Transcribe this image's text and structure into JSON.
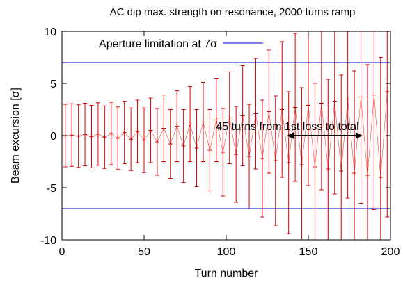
{
  "chart_data": {
    "type": "scatter",
    "title": "AC dip max. strength on resonance, 2000 turns ramp",
    "xlabel": "Turn number",
    "ylabel": "Beam excursion [σ]",
    "xlim": [
      0,
      200
    ],
    "ylim": [
      -10,
      10
    ],
    "x_ticks": [
      0,
      50,
      100,
      150,
      200
    ],
    "y_ticks": [
      -10,
      -5,
      0,
      5,
      10
    ],
    "x_tick_labels": [
      "0",
      "50",
      "100",
      "150",
      "200"
    ],
    "y_tick_labels": [
      "-10",
      "-5",
      "0",
      "5",
      "10"
    ],
    "grid": false,
    "legend_position": "top-left",
    "reference_lines": [
      {
        "name": "Aperture limitation at 7σ",
        "y": 7,
        "color": "#0000cc"
      },
      {
        "name": "",
        "y": -7,
        "color": "#0000cc"
      }
    ],
    "annotation": {
      "text": "45 turns from 1st loss to total",
      "arrow_from": 137,
      "arrow_to": 183,
      "y": 0
    },
    "series": [
      {
        "color": "#dd0000",
        "error_band_start": 3.0,
        "error_band_growth": 1e-07,
        "points": [
          {
            "x": 2,
            "y": 0.0
          },
          {
            "x": 6,
            "y": 0.05
          },
          {
            "x": 10,
            "y": -0.05
          },
          {
            "x": 14,
            "y": 0.1
          },
          {
            "x": 18,
            "y": -0.1
          },
          {
            "x": 22,
            "y": 0.15
          },
          {
            "x": 26,
            "y": -0.15
          },
          {
            "x": 30,
            "y": 0.2
          },
          {
            "x": 34,
            "y": -0.25
          },
          {
            "x": 38,
            "y": 0.3
          },
          {
            "x": 42,
            "y": -0.35
          },
          {
            "x": 46,
            "y": 0.4
          },
          {
            "x": 50,
            "y": -0.45
          },
          {
            "x": 54,
            "y": 0.5
          },
          {
            "x": 58,
            "y": -0.6
          },
          {
            "x": 62,
            "y": 0.7
          },
          {
            "x": 66,
            "y": -0.8
          },
          {
            "x": 70,
            "y": 0.9
          },
          {
            "x": 74,
            "y": -1.0
          },
          {
            "x": 78,
            "y": 1.1
          },
          {
            "x": 82,
            "y": -1.2
          },
          {
            "x": 86,
            "y": 1.3
          },
          {
            "x": 90,
            "y": -1.4
          },
          {
            "x": 94,
            "y": 1.5
          },
          {
            "x": 98,
            "y": -1.6
          },
          {
            "x": 102,
            "y": 1.7
          },
          {
            "x": 106,
            "y": -1.8
          },
          {
            "x": 110,
            "y": 1.9
          },
          {
            "x": 114,
            "y": -2.0
          },
          {
            "x": 118,
            "y": 2.1
          },
          {
            "x": 122,
            "y": -2.2
          },
          {
            "x": 126,
            "y": 2.3
          },
          {
            "x": 130,
            "y": -2.4
          },
          {
            "x": 134,
            "y": 2.5
          },
          {
            "x": 138,
            "y": -2.6
          },
          {
            "x": 142,
            "y": 2.7
          },
          {
            "x": 146,
            "y": -2.8
          },
          {
            "x": 150,
            "y": 2.9
          },
          {
            "x": 154,
            "y": -3.0
          },
          {
            "x": 158,
            "y": 3.1
          },
          {
            "x": 162,
            "y": -3.2
          },
          {
            "x": 166,
            "y": 3.3
          },
          {
            "x": 170,
            "y": -3.4
          },
          {
            "x": 174,
            "y": 3.5
          },
          {
            "x": 178,
            "y": -3.6
          },
          {
            "x": 182,
            "y": 3.7
          },
          {
            "x": 186,
            "y": -3.8
          },
          {
            "x": 190,
            "y": 3.9
          },
          {
            "x": 194,
            "y": -4.0
          },
          {
            "x": 198,
            "y": 4.2
          }
        ],
        "errors": [
          3.0,
          3.0,
          3.0,
          3.0,
          3.0,
          3.0,
          3.0,
          3.0,
          3.0,
          3.0,
          3.0,
          3.0,
          3.1,
          3.1,
          3.2,
          3.2,
          3.3,
          3.4,
          3.5,
          3.6,
          3.7,
          3.8,
          3.9,
          4.0,
          4.2,
          4.4,
          4.6,
          4.8,
          5.0,
          5.3,
          5.6,
          5.9,
          6.2,
          6.5,
          6.8,
          7.1,
          7.4,
          7.7,
          8.0,
          8.3,
          8.6,
          8.9,
          9.2,
          9.5,
          9.8,
          10.2,
          10.6,
          11.0,
          11.5,
          12.0
        ]
      }
    ]
  }
}
